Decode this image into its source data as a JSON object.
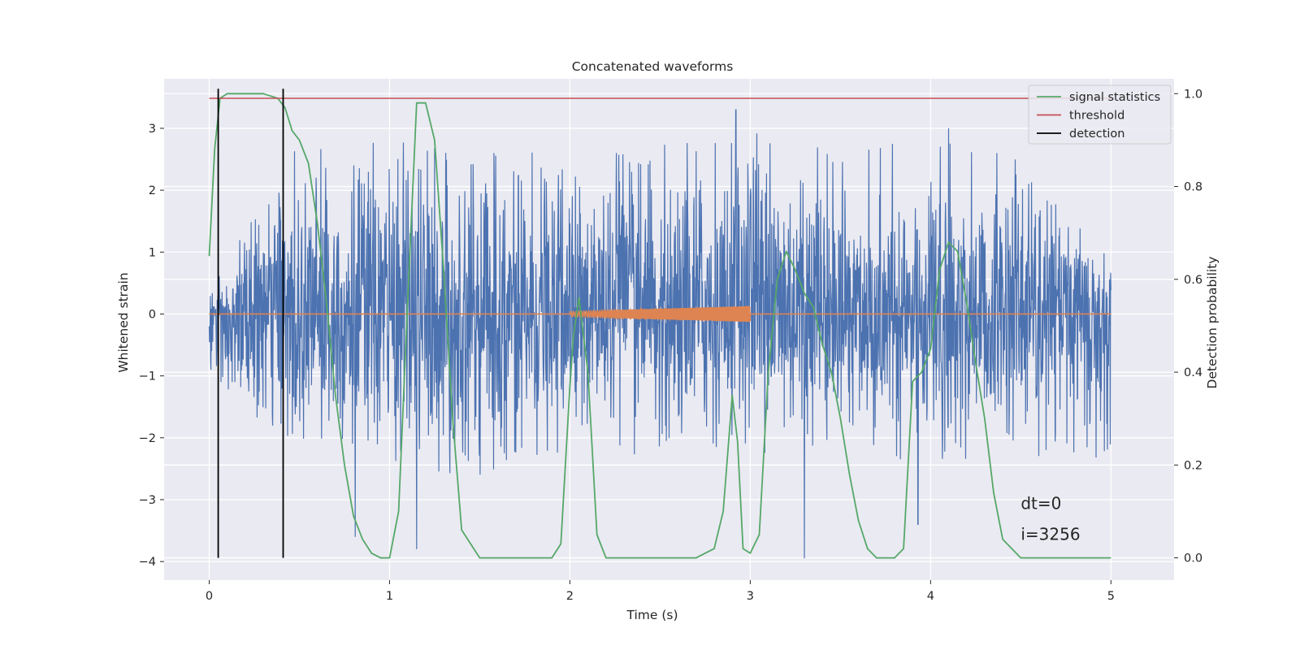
{
  "chart_data": {
    "type": "line",
    "title": "Concatenated waveforms",
    "xlabel": "Time (s)",
    "ylabel": "Whitened strain",
    "ylabel_right": "Detection probability",
    "xlim": [
      -0.25,
      5.35
    ],
    "ylim": [
      -4.3,
      3.8
    ],
    "ylim_right": [
      -0.048,
      1.032
    ],
    "xticks": [
      0,
      1,
      2,
      3,
      4,
      5
    ],
    "yticks": [
      -4,
      -3,
      -2,
      -1,
      0,
      1,
      2,
      3
    ],
    "yticks_right": [
      0.0,
      0.2,
      0.4,
      0.6,
      0.8,
      1.0
    ],
    "x_tick_labels": [
      "0",
      "1",
      "2",
      "3",
      "4",
      "5"
    ],
    "y_tick_labels": [
      "−4",
      "−3",
      "−2",
      "−1",
      "0",
      "1",
      "2",
      "3"
    ],
    "y_tick_labels_right": [
      "0.0",
      "0.2",
      "0.4",
      "0.6",
      "0.8",
      "1.0"
    ],
    "grid": true,
    "legend_position": "top-right",
    "legend": [
      "signal statistics",
      "threshold",
      "detection"
    ],
    "colors": {
      "strain": "#4c72b0",
      "chirp": "#dd8452",
      "signal_statistics": "#55a868",
      "threshold": "#c44e52",
      "detection": "#000000",
      "axes_bg": "#eaeaf2",
      "grid": "#ffffff"
    },
    "strain_noise": {
      "x_range": [
        0,
        5
      ],
      "envelope_min": [
        [
          0,
          -1.4
        ],
        [
          0.5,
          -2.3
        ],
        [
          1.0,
          -2.6
        ],
        [
          1.5,
          -2.6
        ],
        [
          2.0,
          -2.3
        ],
        [
          2.5,
          -2.3
        ],
        [
          3.0,
          -2.3
        ],
        [
          3.5,
          -2.3
        ],
        [
          4.0,
          -2.4
        ],
        [
          4.5,
          -2.3
        ],
        [
          5.0,
          -2.4
        ]
      ],
      "envelope_max": [
        [
          0,
          0.4
        ],
        [
          0.5,
          2.8
        ],
        [
          1.0,
          2.8
        ],
        [
          1.5,
          2.8
        ],
        [
          2.0,
          2.7
        ],
        [
          2.5,
          2.8
        ],
        [
          3.0,
          3.3
        ],
        [
          3.5,
          2.8
        ],
        [
          4.0,
          2.8
        ],
        [
          4.5,
          2.6
        ],
        [
          5.0,
          0.9
        ]
      ],
      "outlier_spikes": [
        [
          0.81,
          -3.6
        ],
        [
          1.15,
          -3.8
        ],
        [
          2.92,
          3.3
        ],
        [
          3.3,
          -3.95
        ],
        [
          3.93,
          -3.4
        ],
        [
          4.1,
          3.0
        ]
      ]
    },
    "injected_chirp": {
      "x_range": [
        2.0,
        3.0
      ],
      "amplitude_start": 0.04,
      "amplitude_end": 0.13
    },
    "series": [
      {
        "name": "signal statistics",
        "x": [
          0.0,
          0.03,
          0.06,
          0.1,
          0.2,
          0.3,
          0.38,
          0.42,
          0.46,
          0.5,
          0.55,
          0.6,
          0.65,
          0.7,
          0.75,
          0.8,
          0.85,
          0.9,
          0.95,
          1.0,
          1.05,
          1.1,
          1.15,
          1.2,
          1.25,
          1.3,
          1.35,
          1.4,
          1.5,
          1.6,
          1.7,
          1.8,
          1.9,
          1.95,
          2.0,
          2.02,
          2.05,
          2.1,
          2.15,
          2.2,
          2.3,
          2.5,
          2.7,
          2.8,
          2.85,
          2.9,
          2.93,
          2.96,
          3.0,
          3.05,
          3.1,
          3.15,
          3.2,
          3.25,
          3.3,
          3.35,
          3.4,
          3.45,
          3.5,
          3.55,
          3.6,
          3.65,
          3.7,
          3.8,
          3.85,
          3.9,
          3.95,
          4.0,
          4.05,
          4.1,
          4.15,
          4.2,
          4.25,
          4.3,
          4.35,
          4.4,
          4.5,
          4.7,
          4.9,
          5.0
        ],
        "y": [
          0.65,
          0.88,
          0.99,
          1.0,
          1.0,
          1.0,
          0.99,
          0.97,
          0.92,
          0.9,
          0.85,
          0.72,
          0.55,
          0.35,
          0.2,
          0.09,
          0.04,
          0.01,
          0.0,
          0.0,
          0.1,
          0.55,
          0.98,
          0.98,
          0.9,
          0.62,
          0.3,
          0.06,
          0.0,
          0.0,
          0.0,
          0.0,
          0.0,
          0.03,
          0.37,
          0.48,
          0.56,
          0.4,
          0.05,
          0.0,
          0.0,
          0.0,
          0.0,
          0.02,
          0.1,
          0.35,
          0.25,
          0.02,
          0.01,
          0.05,
          0.4,
          0.6,
          0.66,
          0.62,
          0.57,
          0.54,
          0.46,
          0.4,
          0.3,
          0.18,
          0.08,
          0.02,
          0.0,
          0.0,
          0.02,
          0.38,
          0.4,
          0.45,
          0.62,
          0.68,
          0.66,
          0.55,
          0.42,
          0.3,
          0.14,
          0.04,
          0.0,
          0.0,
          0.0,
          0.0
        ]
      },
      {
        "name": "threshold",
        "x": [
          0,
          5
        ],
        "y": [
          0.99,
          0.99
        ]
      },
      {
        "name": "detection",
        "x_positions": [
          0.05,
          0.41
        ],
        "y_range": [
          0.0,
          1.0
        ]
      }
    ],
    "annotations": [
      {
        "text": "dt=0",
        "x": 4.5,
        "y": -3.15
      },
      {
        "text": "i=3256",
        "x": 4.5,
        "y": -3.65
      }
    ]
  }
}
